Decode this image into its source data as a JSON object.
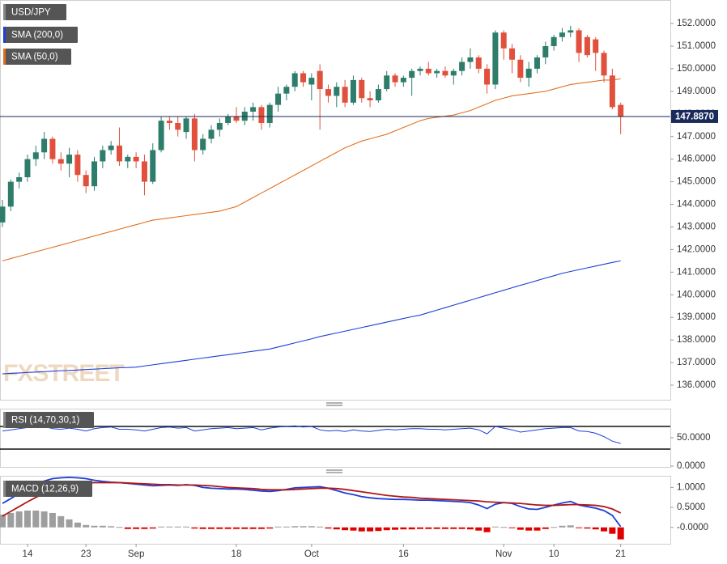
{
  "chart_data": [
    {
      "type": "candlestick",
      "title": "USD/JPY",
      "watermark": "FXSTREET",
      "categories": [
        null,
        null,
        null,
        "14",
        null,
        null,
        null,
        null,
        null,
        null,
        "23",
        null,
        null,
        null,
        null,
        null,
        "Sep",
        null,
        null,
        null,
        null,
        null,
        null,
        null,
        null,
        null,
        null,
        null,
        "18",
        null,
        null,
        null,
        null,
        null,
        null,
        null,
        null,
        "Oct",
        null,
        null,
        null,
        null,
        null,
        null,
        null,
        null,
        null,
        null,
        "16",
        null,
        null,
        null,
        null,
        null,
        null,
        null,
        null,
        null,
        null,
        null,
        "Nov",
        null,
        null,
        null,
        null,
        null,
        "10",
        null,
        null,
        null,
        null,
        null,
        null,
        null,
        "21"
      ],
      "open": [
        143.2,
        143.9,
        145.0,
        145.2,
        146.0,
        146.3,
        146.9,
        146.0,
        145.8,
        146.2,
        145.3,
        144.8,
        145.9,
        146.4,
        146.6,
        145.9,
        146.1,
        145.9,
        145.0,
        146.4,
        147.7,
        147.6,
        147.2,
        147.8,
        146.4,
        146.9,
        147.3,
        147.6,
        147.9,
        147.7,
        148.1,
        148.3,
        147.6,
        148.4,
        148.9,
        149.2,
        149.8,
        149.3,
        149.9,
        149.1,
        148.8,
        149.2,
        148.5,
        149.5,
        148.7,
        148.6,
        149.1,
        149.7,
        149.4,
        149.6,
        149.9,
        150.0,
        149.8,
        149.9,
        149.7,
        149.9,
        150.3,
        150.5,
        150.0,
        149.3,
        151.6,
        150.9,
        150.4,
        149.6,
        150.0,
        150.5,
        151.0,
        151.4,
        151.6,
        151.7,
        151.4,
        151.3,
        150.7,
        149.7,
        148.4
      ],
      "high": [
        144.2,
        145.1,
        145.4,
        146.2,
        146.6,
        147.2,
        147.0,
        146.3,
        146.5,
        146.4,
        145.5,
        146.1,
        146.6,
        146.8,
        147.4,
        146.2,
        146.3,
        146.2,
        146.7,
        147.9,
        147.9,
        147.9,
        147.9,
        148.0,
        147.1,
        147.5,
        147.8,
        148.0,
        148.3,
        148.3,
        148.5,
        148.4,
        148.5,
        149.2,
        149.3,
        149.9,
        149.9,
        149.8,
        150.2,
        149.3,
        149.4,
        149.5,
        149.7,
        149.6,
        149.0,
        149.3,
        149.9,
        149.8,
        149.7,
        150.0,
        150.1,
        150.3,
        150.0,
        150.1,
        150.0,
        150.5,
        150.9,
        150.6,
        150.2,
        151.7,
        151.7,
        151.1,
        150.6,
        150.3,
        150.6,
        151.2,
        151.5,
        151.8,
        151.9,
        151.8,
        151.5,
        151.4,
        150.8,
        150.0,
        148.5
      ],
      "low": [
        143.0,
        143.7,
        144.7,
        145.0,
        145.7,
        146.0,
        145.8,
        145.5,
        145.2,
        145.0,
        144.5,
        144.6,
        145.6,
        146.2,
        145.7,
        145.6,
        145.6,
        144.4,
        144.9,
        146.3,
        147.3,
        147.0,
        146.9,
        145.9,
        146.2,
        146.7,
        147.0,
        147.5,
        147.6,
        147.5,
        147.7,
        147.3,
        147.4,
        148.1,
        148.6,
        149.0,
        149.2,
        148.6,
        147.3,
        148.5,
        148.3,
        148.3,
        148.4,
        148.5,
        148.3,
        148.5,
        149.0,
        149.2,
        149.2,
        148.8,
        149.7,
        149.7,
        149.6,
        149.6,
        149.3,
        149.7,
        150.0,
        149.8,
        148.9,
        149.1,
        150.4,
        149.8,
        149.4,
        149.2,
        149.8,
        150.2,
        150.8,
        151.2,
        151.4,
        150.3,
        150.5,
        149.9,
        149.4,
        148.2,
        147.1
      ],
      "close": [
        143.9,
        145.0,
        145.2,
        146.0,
        146.3,
        146.9,
        146.0,
        145.8,
        146.2,
        145.3,
        144.8,
        145.9,
        146.4,
        146.6,
        145.9,
        146.1,
        145.9,
        145.0,
        146.4,
        147.7,
        147.6,
        147.3,
        147.8,
        146.4,
        146.9,
        147.3,
        147.6,
        147.9,
        147.7,
        148.1,
        148.3,
        147.6,
        148.4,
        148.9,
        149.2,
        149.8,
        149.4,
        149.6,
        149.1,
        148.8,
        149.2,
        148.5,
        149.5,
        148.7,
        148.6,
        149.1,
        149.7,
        149.4,
        149.6,
        149.9,
        150.0,
        149.8,
        149.9,
        149.7,
        149.9,
        150.3,
        150.5,
        150.0,
        149.3,
        151.6,
        150.9,
        150.4,
        149.6,
        150.0,
        150.5,
        151.0,
        151.4,
        151.6,
        151.7,
        150.7,
        150.6,
        150.7,
        149.7,
        148.3,
        147.9
      ],
      "up_color": "#2e7d6b",
      "down_color": "#e0503c",
      "series": [
        {
          "name": "SMA (200,0)",
          "color": "#1f3fd6",
          "values": [
            136.5,
            136.52,
            136.54,
            136.56,
            136.58,
            136.6,
            136.62,
            136.64,
            136.65,
            136.67,
            136.69,
            136.71,
            136.73,
            136.75,
            136.77,
            136.78,
            136.8,
            136.85,
            136.9,
            136.95,
            137.0,
            137.05,
            137.1,
            137.15,
            137.2,
            137.25,
            137.3,
            137.35,
            137.4,
            137.45,
            137.5,
            137.55,
            137.6,
            137.69,
            137.78,
            137.87,
            137.96,
            138.05,
            138.15,
            138.23,
            138.31,
            138.39,
            138.47,
            138.55,
            138.63,
            138.71,
            138.79,
            138.87,
            138.95,
            139.03,
            139.1,
            139.21,
            139.32,
            139.43,
            139.54,
            139.65,
            139.76,
            139.87,
            139.98,
            140.09,
            140.2,
            140.31,
            140.42,
            140.52,
            140.63,
            140.74,
            140.84,
            140.95,
            141.03,
            141.11,
            141.19,
            141.27,
            141.35,
            141.43,
            141.5
          ]
        },
        {
          "name": "SMA (50,0)",
          "color": "#e07020",
          "values": [
            141.5,
            141.6,
            141.7,
            141.8,
            141.9,
            142.0,
            142.1,
            142.2,
            142.3,
            142.4,
            142.5,
            142.6,
            142.7,
            142.8,
            142.9,
            143.0,
            143.1,
            143.2,
            143.3,
            143.35,
            143.4,
            143.45,
            143.5,
            143.55,
            143.6,
            143.65,
            143.7,
            143.8,
            143.9,
            144.1,
            144.3,
            144.5,
            144.7,
            144.9,
            145.1,
            145.3,
            145.5,
            145.7,
            145.9,
            146.1,
            146.3,
            146.5,
            146.65,
            146.8,
            146.9,
            147.0,
            147.1,
            147.25,
            147.4,
            147.55,
            147.7,
            147.8,
            147.85,
            147.9,
            147.95,
            148.05,
            148.15,
            148.3,
            148.45,
            148.6,
            148.7,
            148.8,
            148.85,
            148.9,
            148.95,
            149.0,
            149.1,
            149.2,
            149.3,
            149.35,
            149.4,
            149.45,
            149.5,
            149.5,
            149.55
          ]
        }
      ],
      "last_price": {
        "value": 147.887,
        "label": "147.8870"
      },
      "last_price_color": "#1a2a5a",
      "ylim": [
        135.32,
        153.04
      ],
      "yticks": [
        {
          "value": 136,
          "label": "136.0000"
        },
        {
          "value": 137,
          "label": "137.0000"
        },
        {
          "value": 138,
          "label": "138.0000"
        },
        {
          "value": 139,
          "label": "139.0000"
        },
        {
          "value": 140,
          "label": "140.0000"
        },
        {
          "value": 141,
          "label": "141.0000"
        },
        {
          "value": 142,
          "label": "142.0000"
        },
        {
          "value": 143,
          "label": "143.0000"
        },
        {
          "value": 144,
          "label": "144.0000"
        },
        {
          "value": 145,
          "label": "145.0000"
        },
        {
          "value": 146,
          "label": "146.0000"
        },
        {
          "value": 147,
          "label": "147.0000"
        },
        {
          "value": 148,
          "label": "148.0000"
        },
        {
          "value": 149,
          "label": "149.0000"
        },
        {
          "value": 150,
          "label": "150.0000"
        },
        {
          "value": 151,
          "label": "151.0000"
        },
        {
          "value": 152,
          "label": "152.0000"
        }
      ]
    },
    {
      "type": "line",
      "title": "RSI (14,70,30,1)",
      "color": "#1f3fd6",
      "values": [
        62,
        64,
        66,
        68,
        70,
        70,
        66,
        65,
        67,
        65,
        62,
        66,
        68,
        69,
        65,
        65,
        64,
        62,
        65,
        68,
        69,
        67,
        68,
        62,
        64,
        66,
        67,
        68,
        66,
        67,
        68,
        64,
        67,
        69,
        70,
        71,
        69,
        70,
        64,
        62,
        63,
        61,
        64,
        62,
        61,
        63,
        65,
        64,
        65,
        66,
        66,
        65,
        65,
        64,
        65,
        66,
        67,
        64,
        57,
        70,
        67,
        64,
        60,
        62,
        64,
        66,
        67,
        68,
        68,
        62,
        61,
        58,
        52,
        44,
        40
      ],
      "levels": [
        70,
        30
      ],
      "ylim": [
        0,
        100
      ],
      "yticks": [
        {
          "value": 50,
          "label": "50.0000"
        },
        {
          "value": 0,
          "label": "0.0000"
        }
      ]
    },
    {
      "type": "macd",
      "title": "MACD (12,26,9)",
      "series": [
        {
          "color": "#1f3fd6",
          "values": [
            0.6,
            0.72,
            0.85,
            0.98,
            1.08,
            1.16,
            1.22,
            1.24,
            1.25,
            1.24,
            1.22,
            1.18,
            1.15,
            1.13,
            1.12,
            1.1,
            1.08,
            1.06,
            1.04,
            1.05,
            1.06,
            1.05,
            1.07,
            1.05,
            1.0,
            0.98,
            0.97,
            0.96,
            0.96,
            0.95,
            0.93,
            0.91,
            0.9,
            0.92,
            0.95,
            0.99,
            1.0,
            1.01,
            1.02,
            0.98,
            0.92,
            0.86,
            0.82,
            0.77,
            0.74,
            0.72,
            0.71,
            0.7,
            0.7,
            0.69,
            0.68,
            0.68,
            0.67,
            0.66,
            0.65,
            0.64,
            0.62,
            0.56,
            0.47,
            0.58,
            0.62,
            0.6,
            0.52,
            0.46,
            0.45,
            0.5,
            0.56,
            0.61,
            0.65,
            0.56,
            0.52,
            0.48,
            0.42,
            0.3,
            0.02
          ]
        },
        {
          "color": "#b01818",
          "values": [
            0.28,
            0.4,
            0.52,
            0.64,
            0.75,
            0.85,
            0.94,
            1.01,
            1.06,
            1.09,
            1.11,
            1.12,
            1.12,
            1.12,
            1.12,
            1.11,
            1.1,
            1.09,
            1.08,
            1.07,
            1.07,
            1.06,
            1.06,
            1.06,
            1.05,
            1.04,
            1.02,
            1.0,
            0.99,
            0.98,
            0.97,
            0.95,
            0.94,
            0.94,
            0.94,
            0.95,
            0.96,
            0.97,
            0.98,
            0.98,
            0.97,
            0.95,
            0.92,
            0.89,
            0.86,
            0.83,
            0.8,
            0.78,
            0.76,
            0.75,
            0.73,
            0.72,
            0.71,
            0.7,
            0.69,
            0.68,
            0.67,
            0.66,
            0.64,
            0.63,
            0.62,
            0.61,
            0.6,
            0.58,
            0.56,
            0.55,
            0.55,
            0.56,
            0.57,
            0.57,
            0.56,
            0.55,
            0.52,
            0.46,
            0.36
          ]
        }
      ],
      "histogram": [
        0.32,
        0.36,
        0.4,
        0.42,
        0.42,
        0.4,
        0.36,
        0.28,
        0.2,
        0.12,
        0.06,
        0.04,
        0.04,
        0.03,
        0.01,
        -0.04,
        -0.04,
        -0.04,
        -0.03,
        0.02,
        0.02,
        0.02,
        0.02,
        -0.03,
        -0.04,
        -0.04,
        -0.04,
        -0.04,
        -0.04,
        -0.04,
        -0.04,
        -0.04,
        -0.03,
        0.02,
        0.02,
        0.03,
        0.03,
        0.03,
        0.02,
        -0.03,
        -0.05,
        -0.07,
        -0.08,
        -0.1,
        -0.1,
        -0.09,
        -0.07,
        -0.06,
        -0.05,
        -0.05,
        -0.04,
        -0.04,
        -0.04,
        -0.04,
        -0.04,
        -0.04,
        -0.05,
        -0.08,
        -0.12,
        0.02,
        0.01,
        -0.01,
        -0.06,
        -0.08,
        -0.08,
        -0.04,
        0.01,
        0.04,
        0.05,
        -0.01,
        -0.03,
        -0.05,
        -0.1,
        -0.16,
        -0.3
      ],
      "positive_color": "#9e9e9e",
      "negative_color": "#e00000",
      "ylim": [
        -0.41,
        1.25
      ],
      "yticks": [
        {
          "value": 1,
          "label": "1.0000"
        },
        {
          "value": 0.5,
          "label": "0.5000"
        },
        {
          "value": 0,
          "label": "-0.0000"
        }
      ]
    }
  ]
}
